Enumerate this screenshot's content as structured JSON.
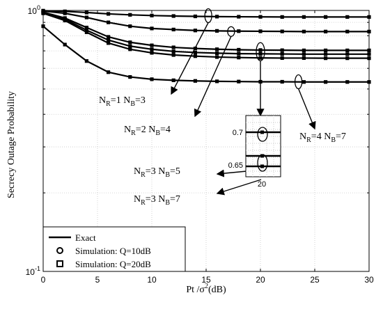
{
  "chart_data": {
    "type": "line",
    "xlabel": "Pt /σ",
    "xlabel_sup": "2",
    "xlabel_tail": "(dB)",
    "ylabel": "Secrecy Outage Probability",
    "xlim": [
      0,
      30
    ],
    "ylim": [
      0.1,
      1.0
    ],
    "yscale": "log",
    "grid": true,
    "x_ticks": [
      "0",
      "5",
      "10",
      "15",
      "20",
      "25",
      "30"
    ],
    "y_ticks": [
      {
        "base": "10",
        "exp": "0",
        "value": 1.0
      },
      {
        "base": "10",
        "exp": "-1",
        "value": 0.1
      }
    ],
    "x": [
      0,
      2,
      4,
      6,
      8,
      10,
      12,
      14,
      16,
      18,
      20,
      22,
      24,
      26,
      28,
      30
    ],
    "series": [
      {
        "values": [
          0.998,
          0.992,
          0.982,
          0.97,
          0.962,
          0.956,
          0.952,
          0.949,
          0.947,
          0.946,
          0.945,
          0.944,
          0.944,
          0.944,
          0.944,
          0.944
        ]
      },
      {
        "values": [
          0.995,
          0.975,
          0.94,
          0.9,
          0.87,
          0.853,
          0.845,
          0.838,
          0.835,
          0.833,
          0.832,
          0.831,
          0.83,
          0.83,
          0.83,
          0.83
        ]
      },
      {
        "values": [
          0.985,
          0.935,
          0.86,
          0.792,
          0.755,
          0.735,
          0.722,
          0.715,
          0.71,
          0.707,
          0.705,
          0.704,
          0.703,
          0.703,
          0.703,
          0.703
        ]
      },
      {
        "values": [
          0.98,
          0.925,
          0.84,
          0.77,
          0.73,
          0.71,
          0.697,
          0.69,
          0.686,
          0.683,
          0.682,
          0.681,
          0.68,
          0.68,
          0.68,
          0.68
        ]
      },
      {
        "values": [
          0.975,
          0.915,
          0.825,
          0.75,
          0.71,
          0.688,
          0.675,
          0.668,
          0.663,
          0.66,
          0.658,
          0.657,
          0.657,
          0.656,
          0.656,
          0.656
        ]
      },
      {
        "values": [
          0.87,
          0.74,
          0.64,
          0.58,
          0.556,
          0.545,
          0.54,
          0.537,
          0.535,
          0.534,
          0.533,
          0.533,
          0.532,
          0.532,
          0.532,
          0.532
        ]
      }
    ],
    "annotations": [
      {
        "n_r": "1",
        "n_b": "3"
      },
      {
        "n_r": "2",
        "n_b": "4"
      },
      {
        "n_r": "3",
        "n_b": "5"
      },
      {
        "n_r": "3",
        "n_b": "7"
      },
      {
        "n_r": "4",
        "n_b": "7"
      }
    ],
    "annotation_prefix_r": "N",
    "annotation_sub_r": "R",
    "annotation_eq": "=",
    "annotation_prefix_b": "N",
    "annotation_sub_b": "B",
    "inset": {
      "y_ticks": [
        "0.7",
        "0.65"
      ],
      "x_tick": "20"
    },
    "legend": {
      "placement": "bottom-left",
      "entries": [
        "Exact",
        "Simulation: Q=10dB",
        "Simulation: Q=20dB"
      ]
    },
    "colors": {
      "line": "#000000",
      "grid": "#c8c8c8"
    }
  }
}
